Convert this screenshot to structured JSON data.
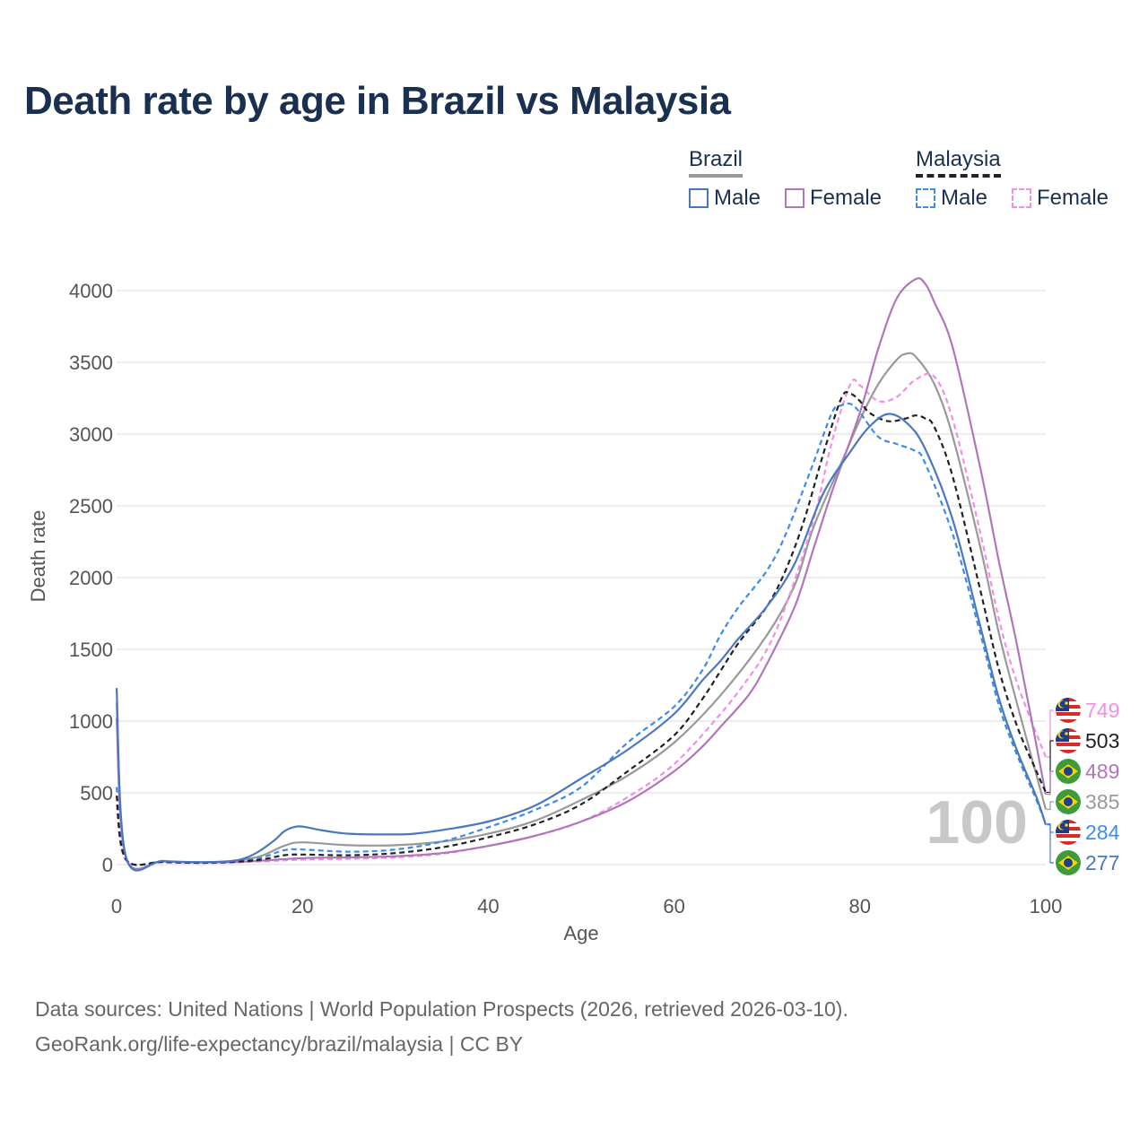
{
  "title": "Death rate by age in Brazil vs Malaysia",
  "legend": {
    "brazil_label": "Brazil",
    "malaysia_label": "Malaysia",
    "male_label": "Male",
    "female_label": "Female"
  },
  "sources": {
    "line1": "Data sources: United Nations | World Population Prospects (2026, retrieved 2026-03-10).",
    "line2": "GeoRank.org/life-expectancy/brazil/malaysia | CC BY"
  },
  "colors": {
    "brazil_male": "#4a78c0",
    "brazil_female": "#b077b8",
    "brazil_total": "#999999",
    "malaysia_male": "#3e8be8",
    "malaysia_female": "#f28ee8",
    "malaysia_total": "#222222"
  },
  "chart_data": {
    "type": "line",
    "title": "Death rate by age in Brazil vs Malaysia",
    "xlabel": "Age",
    "ylabel": "Death rate",
    "xlim": [
      0,
      100
    ],
    "ylim": [
      0,
      4000
    ],
    "x_ticks": [
      0,
      20,
      40,
      60,
      80,
      100
    ],
    "y_ticks": [
      0,
      500,
      1000,
      1500,
      2000,
      2500,
      3000,
      3500,
      4000
    ],
    "highlight_age_label": "100",
    "series": [
      {
        "key": "brazil_male",
        "name": "Brazil Male",
        "country": "Brazil",
        "dash": false,
        "x": [
          0,
          1,
          5,
          10,
          13,
          15,
          17,
          18,
          19,
          20,
          22,
          25,
          30,
          32,
          35,
          40,
          45,
          50,
          55,
          60,
          63,
          65,
          67,
          70,
          73,
          76,
          79,
          81,
          83,
          85,
          87,
          90,
          93,
          95,
          97,
          99,
          100
        ],
        "y": [
          1230,
          55,
          25,
          18,
          30,
          80,
          170,
          230,
          260,
          265,
          240,
          215,
          210,
          215,
          240,
          300,
          410,
          600,
          800,
          1050,
          1280,
          1420,
          1580,
          1800,
          2100,
          2580,
          2880,
          3050,
          3140,
          3080,
          2900,
          2400,
          1650,
          1150,
          780,
          470,
          277
        ],
        "end_label": "277"
      },
      {
        "key": "brazil_female",
        "name": "Brazil Female",
        "country": "Brazil",
        "dash": false,
        "x": [
          0,
          1,
          5,
          10,
          13,
          15,
          20,
          25,
          30,
          35,
          40,
          45,
          50,
          55,
          60,
          63,
          65,
          68,
          70,
          73,
          75,
          77,
          80,
          82,
          84,
          86,
          87,
          88,
          90,
          93,
          95,
          97,
          100
        ],
        "y": [
          1020,
          50,
          22,
          15,
          18,
          25,
          45,
          50,
          58,
          80,
          130,
          200,
          300,
          440,
          650,
          820,
          960,
          1180,
          1400,
          1800,
          2200,
          2600,
          3150,
          3600,
          3950,
          4080,
          4050,
          3920,
          3600,
          2750,
          2100,
          1500,
          489
        ],
        "end_label": "489"
      },
      {
        "key": "brazil_total",
        "name": "Brazil Total",
        "country": "Brazil",
        "dash": false,
        "x": [
          0,
          1,
          5,
          10,
          15,
          18,
          20,
          25,
          30,
          35,
          40,
          45,
          50,
          55,
          60,
          65,
          70,
          73,
          75,
          78,
          80,
          82,
          84,
          85,
          86,
          88,
          90,
          93,
          95,
          97,
          100
        ],
        "y": [
          1130,
          52,
          24,
          16,
          50,
          130,
          155,
          135,
          135,
          160,
          215,
          305,
          450,
          620,
          850,
          1180,
          1600,
          1950,
          2350,
          2800,
          3100,
          3350,
          3520,
          3560,
          3540,
          3350,
          2980,
          2200,
          1600,
          1100,
          385
        ],
        "end_label": "385"
      },
      {
        "key": "malaysia_male",
        "name": "Malaysia Male",
        "country": "Malaysia",
        "dash": true,
        "x": [
          0,
          1,
          5,
          10,
          15,
          18,
          20,
          25,
          30,
          35,
          40,
          45,
          50,
          55,
          60,
          63,
          65,
          67,
          70,
          72,
          75,
          77,
          78,
          79,
          80,
          82,
          84,
          86,
          87,
          90,
          93,
          95,
          97,
          99,
          100
        ],
        "y": [
          540,
          40,
          20,
          15,
          40,
          100,
          105,
          90,
          105,
          160,
          260,
          380,
          540,
          850,
          1100,
          1350,
          1600,
          1800,
          2050,
          2300,
          2800,
          3150,
          3200,
          3210,
          3150,
          2980,
          2930,
          2880,
          2800,
          2300,
          1600,
          1100,
          750,
          450,
          284
        ],
        "end_label": "284"
      },
      {
        "key": "malaysia_female",
        "name": "Malaysia Female",
        "country": "Malaysia",
        "dash": true,
        "x": [
          0,
          1,
          5,
          10,
          15,
          20,
          25,
          30,
          35,
          40,
          45,
          50,
          55,
          60,
          65,
          68,
          70,
          72,
          75,
          77,
          79,
          80,
          82,
          84,
          86,
          88,
          90,
          93,
          95,
          97,
          100
        ],
        "y": [
          420,
          32,
          16,
          12,
          20,
          35,
          40,
          50,
          75,
          130,
          200,
          300,
          470,
          700,
          1050,
          1300,
          1500,
          1800,
          2400,
          2950,
          3350,
          3340,
          3230,
          3260,
          3380,
          3400,
          3100,
          2300,
          1700,
          1250,
          749
        ],
        "end_label": "749"
      },
      {
        "key": "malaysia_total",
        "name": "Malaysia Total",
        "country": "Malaysia",
        "dash": true,
        "x": [
          0,
          1,
          5,
          10,
          15,
          18,
          20,
          25,
          30,
          35,
          40,
          45,
          50,
          55,
          60,
          63,
          65,
          67,
          70,
          72,
          74,
          76,
          78,
          79,
          80,
          81,
          83,
          85,
          86,
          87,
          88,
          90,
          93,
          95,
          97,
          99,
          100
        ],
        "y": [
          480,
          36,
          18,
          13,
          30,
          65,
          70,
          65,
          80,
          120,
          190,
          280,
          420,
          650,
          900,
          1150,
          1350,
          1550,
          1800,
          2050,
          2400,
          2850,
          3250,
          3280,
          3230,
          3150,
          3090,
          3110,
          3130,
          3110,
          3050,
          2700,
          1900,
          1350,
          950,
          650,
          503
        ],
        "end_label": "503"
      }
    ]
  }
}
